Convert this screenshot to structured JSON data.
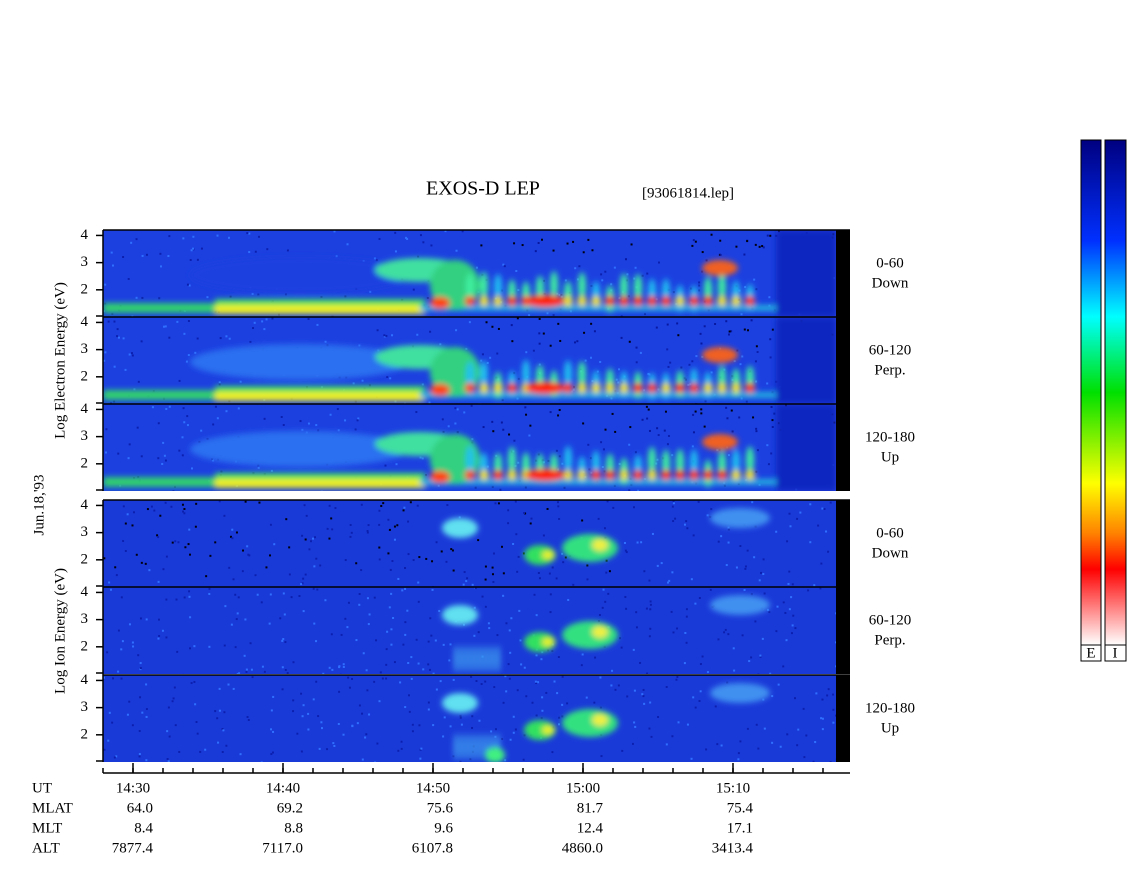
{
  "title": "EXOS-D LEP",
  "file": "[93061814.lep]",
  "date": "Jun.18,'93",
  "groups": [
    {
      "label": "Log  Electron  Energy (eV)",
      "panels": [
        {
          "angle": "0-60",
          "direction": "Down"
        },
        {
          "angle": "60-120",
          "direction": "Perp."
        },
        {
          "angle": "120-180",
          "direction": "Up"
        }
      ]
    },
    {
      "label": "Log  Ion  Energy (eV)",
      "panels": [
        {
          "angle": "0-60",
          "direction": "Down"
        },
        {
          "angle": "60-120",
          "direction": "Perp."
        },
        {
          "angle": "120-180",
          "direction": "Up"
        }
      ]
    }
  ],
  "ylim": [
    1,
    4.2
  ],
  "yticks": [
    2,
    3,
    4
  ],
  "time_axis": {
    "label": "UT",
    "ticks": [
      "14:30",
      "14:40",
      "14:50",
      "15:00",
      "15:10"
    ]
  },
  "ephemeris": [
    {
      "label": "MLAT",
      "values": [
        "64.0",
        "69.2",
        "75.6",
        "81.7",
        "75.4"
      ]
    },
    {
      "label": "MLT",
      "values": [
        "8.4",
        "8.8",
        "9.6",
        "12.4",
        "17.1"
      ]
    },
    {
      "label": "ALT",
      "values": [
        "7877.4",
        "7117.0",
        "6107.8",
        "4860.0",
        "3413.4"
      ]
    }
  ],
  "colorbars": [
    "E",
    "I"
  ]
}
